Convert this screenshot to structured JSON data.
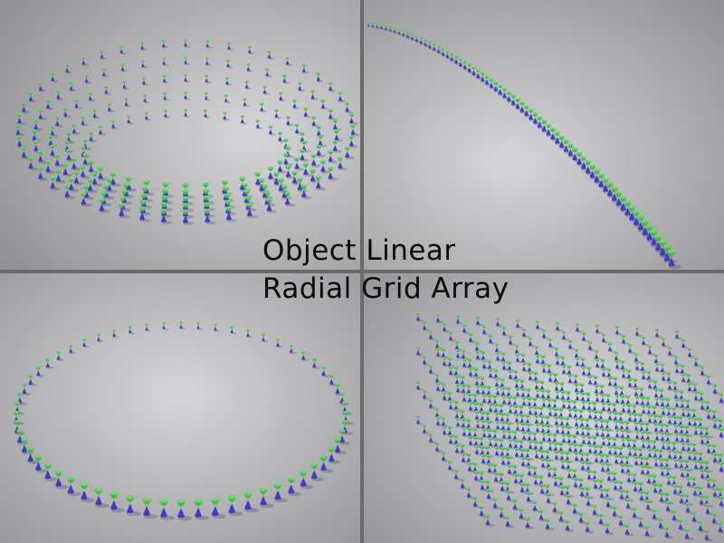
{
  "caption": {
    "line1": "Object Linear",
    "line2": "Radial  Grid Array"
  },
  "panels": [
    {
      "id": "torus",
      "icon": "torus-array-render"
    },
    {
      "id": "curve",
      "icon": "curve-array-render"
    },
    {
      "id": "ring",
      "icon": "ring-array-render"
    },
    {
      "id": "grid",
      "icon": "grid-array-render"
    }
  ],
  "colors": {
    "green": "#45b845",
    "blue": "#3d3dc8",
    "background_light": "#d6d6d8",
    "background_dark": "#8c8c90"
  }
}
